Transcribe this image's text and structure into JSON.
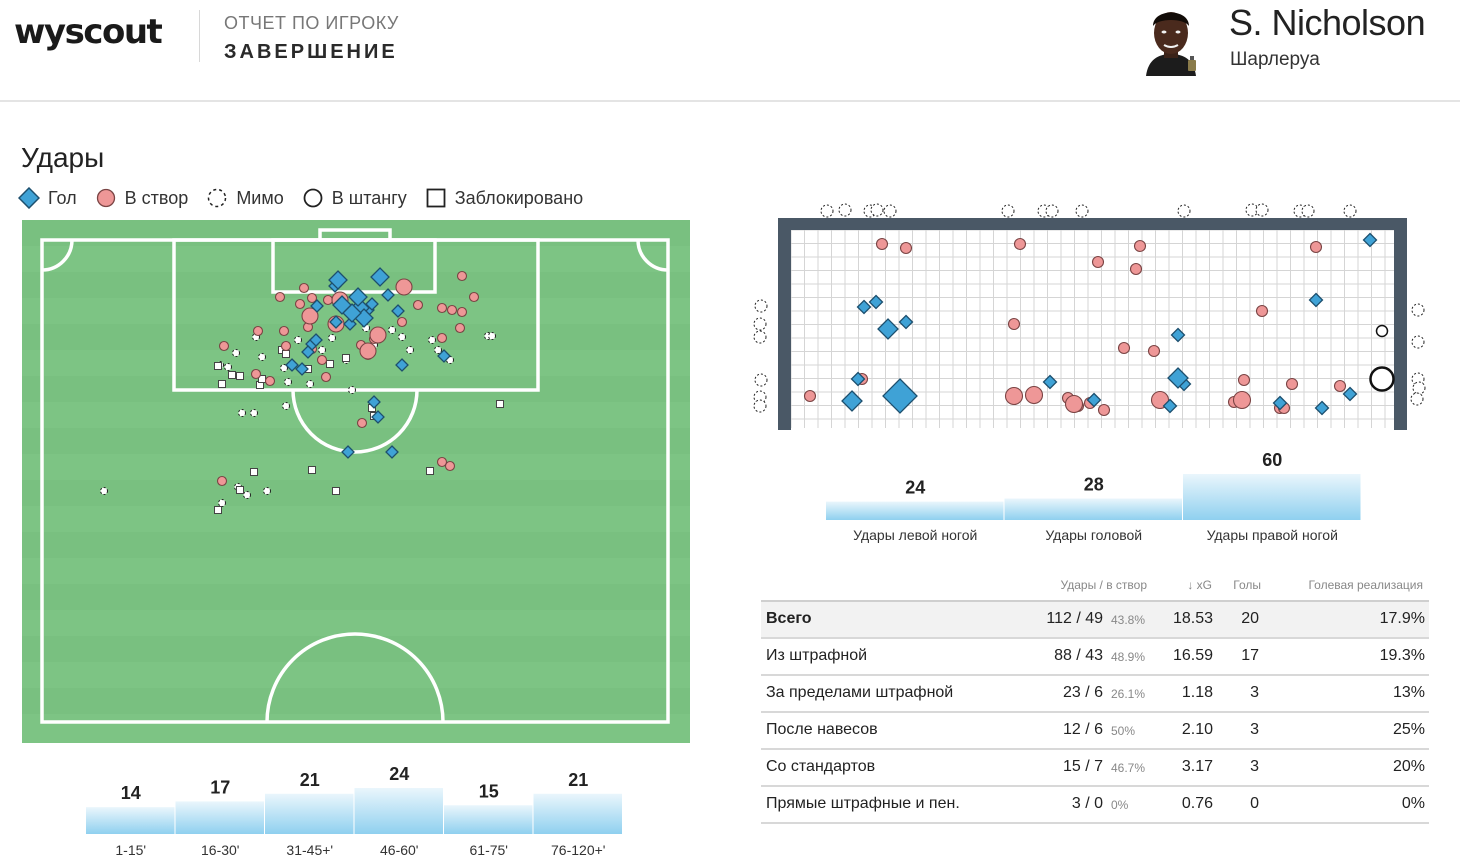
{
  "header": {
    "logo": "wyscout",
    "report_label": "ОТЧЕТ ПО ИГРОКУ",
    "report_title": "ЗАВЕРШЕНИЕ",
    "player_name": "S. Nicholson",
    "player_club": "Шарлеруа"
  },
  "section_title": "Удары",
  "legend": {
    "goal": "Гол",
    "on_target": "В створ",
    "miss": "Мимо",
    "post": "В штангу",
    "blocked": "Заблокировано"
  },
  "colors": {
    "goal": "#3fa2d6",
    "on_target": "#ee9797",
    "pitch": "#7dc484",
    "bar": "#8fd0ef"
  },
  "time_bars": [
    {
      "label": "1-15'",
      "value": 14
    },
    {
      "label": "16-30'",
      "value": 17
    },
    {
      "label": "31-45+'",
      "value": 21
    },
    {
      "label": "46-60'",
      "value": 24
    },
    {
      "label": "61-75'",
      "value": 15
    },
    {
      "label": "76-120+'",
      "value": 21
    }
  ],
  "body_bars": [
    {
      "label": "Удары левой ногой",
      "value": 24
    },
    {
      "label": "Удары головой",
      "value": 28
    },
    {
      "label": "Удары правой ногой",
      "value": 60
    }
  ],
  "stats": {
    "headers": {
      "shots": "Удары / в створ",
      "xg": "↓ xG",
      "goals": "Голы",
      "conversion": "Голевая реализация"
    },
    "rows": [
      {
        "name": "Всего",
        "shots": "112 / 49",
        "pct": "43.8%",
        "xg": "18.53",
        "goals": "20",
        "conv": "17.9%"
      },
      {
        "name": "Из штрафной",
        "shots": "88 / 43",
        "pct": "48.9%",
        "xg": "16.59",
        "goals": "17",
        "conv": "19.3%"
      },
      {
        "name": "За пределами штрафной",
        "shots": "23 / 6",
        "pct": "26.1%",
        "xg": "1.18",
        "goals": "3",
        "conv": "13%"
      },
      {
        "name": "После навесов",
        "shots": "12 / 6",
        "pct": "50%",
        "xg": "2.10",
        "goals": "3",
        "conv": "25%"
      },
      {
        "name": "Со стандартов",
        "shots": "15 / 7",
        "pct": "46.7%",
        "xg": "3.17",
        "goals": "3",
        "conv": "20%"
      },
      {
        "name": "Прямые штрафные и пен.",
        "shots": "3 / 0",
        "pct": "0%",
        "xg": "0.76",
        "goals": "0",
        "conv": "0%"
      }
    ]
  }
}
